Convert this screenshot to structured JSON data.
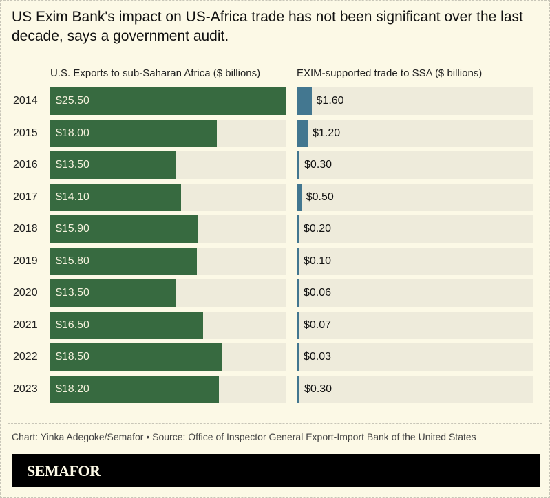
{
  "chart_data": {
    "type": "bar",
    "title": "US Exim Bank's impact on US-Africa trade has not been significant over the last decade, says a government audit.",
    "categories": [
      "2014",
      "2015",
      "2016",
      "2017",
      "2018",
      "2019",
      "2020",
      "2021",
      "2022",
      "2023"
    ],
    "series": [
      {
        "name": "U.S. Exports to sub-Saharan Africa ($ billions)",
        "values": [
          25.5,
          18.0,
          13.5,
          14.1,
          15.9,
          15.8,
          13.5,
          16.5,
          18.5,
          18.2
        ],
        "labels": [
          "$25.50",
          "$18.00",
          "$13.50",
          "$14.10",
          "$15.90",
          "$15.80",
          "$13.50",
          "$16.50",
          "$18.50",
          "$18.20"
        ],
        "color": "#376a40"
      },
      {
        "name": "EXIM-supported trade to SSA ($ billions)",
        "values": [
          1.6,
          1.2,
          0.3,
          0.5,
          0.2,
          0.1,
          0.06,
          0.07,
          0.03,
          0.3
        ],
        "labels": [
          "$1.60",
          "$1.20",
          "$0.30",
          "$0.50",
          "$0.20",
          "$0.10",
          "$0.06",
          "$0.07",
          "$0.03",
          "$0.30"
        ],
        "color": "#437790"
      }
    ],
    "xlim": [
      0,
      25.5
    ]
  },
  "source": "Chart: Yinka Adegoke/Semafor • Source: Office of Inspector General Export-Import Bank of the United States",
  "logo": "SEMAFOR"
}
